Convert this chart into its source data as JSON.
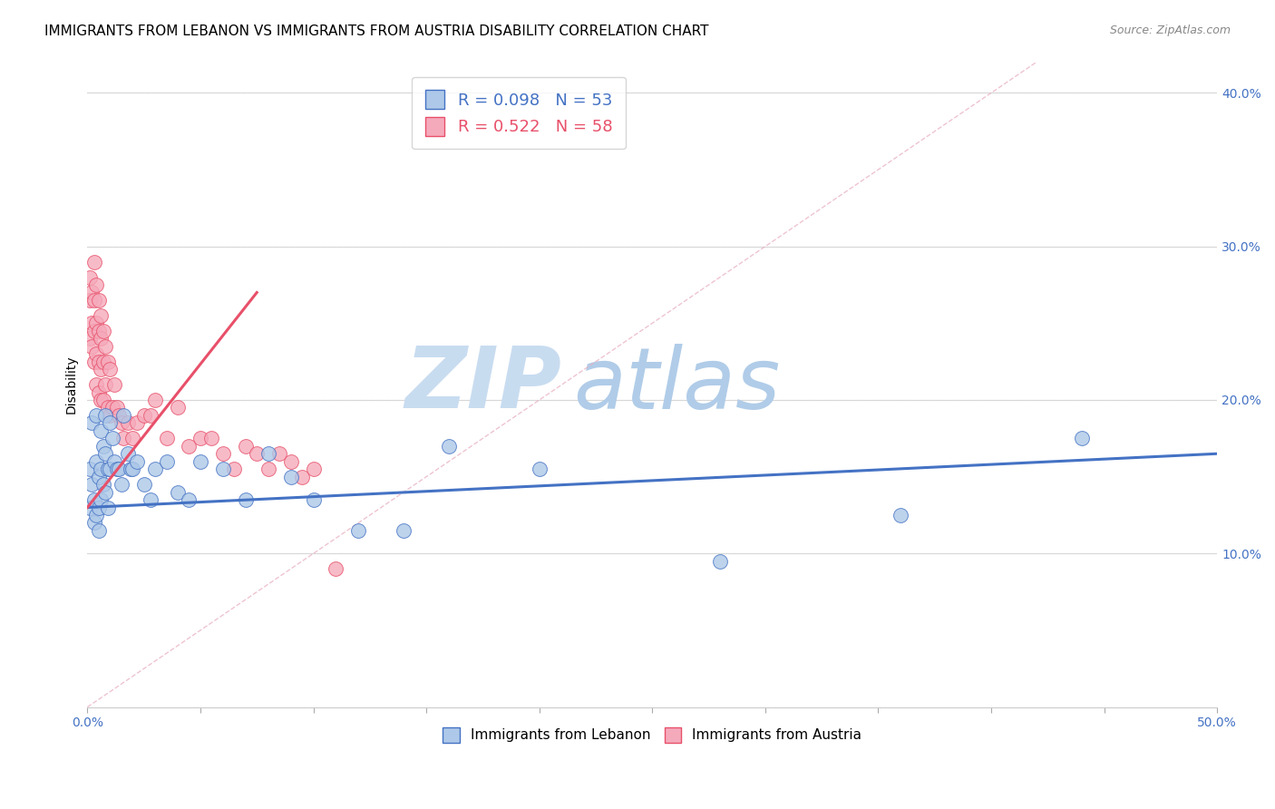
{
  "title": "IMMIGRANTS FROM LEBANON VS IMMIGRANTS FROM AUSTRIA DISABILITY CORRELATION CHART",
  "source": "Source: ZipAtlas.com",
  "xlabel": "",
  "ylabel": "Disability",
  "xlim": [
    0.0,
    0.5
  ],
  "ylim": [
    0.0,
    0.42
  ],
  "x_ticks": [
    0.0,
    0.05,
    0.1,
    0.15,
    0.2,
    0.25,
    0.3,
    0.35,
    0.4,
    0.45,
    0.5
  ],
  "x_tick_labels_show": {
    "0.0": "0.0%",
    "0.5": "50.0%"
  },
  "y_ticks": [
    0.0,
    0.1,
    0.2,
    0.3,
    0.4
  ],
  "y_tick_labels": [
    "",
    "10.0%",
    "20.0%",
    "30.0%",
    "40.0%"
  ],
  "legend_r1": "R = 0.098",
  "legend_n1": "N = 53",
  "legend_r2": "R = 0.522",
  "legend_n2": "N = 58",
  "color_lebanon": "#adc8e8",
  "color_austria": "#f5aabb",
  "line_color_lebanon": "#4472c4",
  "line_color_austria": "#e8506a",
  "diagonal_color": "#e8b0c0",
  "watermark_zip": "ZIP",
  "watermark_atlas": "atlas",
  "watermark_color_zip": "#c8dcf0",
  "watermark_color_atlas": "#b0cce8",
  "background_color": "#ffffff",
  "grid_color": "#d8d8d8",
  "lebanon_x": [
    0.001,
    0.001,
    0.002,
    0.002,
    0.003,
    0.003,
    0.004,
    0.004,
    0.004,
    0.005,
    0.005,
    0.005,
    0.006,
    0.006,
    0.006,
    0.007,
    0.007,
    0.008,
    0.008,
    0.008,
    0.009,
    0.009,
    0.01,
    0.01,
    0.011,
    0.012,
    0.013,
    0.014,
    0.015,
    0.016,
    0.018,
    0.019,
    0.02,
    0.022,
    0.025,
    0.028,
    0.03,
    0.035,
    0.04,
    0.045,
    0.05,
    0.06,
    0.07,
    0.08,
    0.09,
    0.1,
    0.12,
    0.14,
    0.16,
    0.2,
    0.28,
    0.36,
    0.44
  ],
  "lebanon_y": [
    0.13,
    0.155,
    0.185,
    0.145,
    0.135,
    0.12,
    0.19,
    0.16,
    0.125,
    0.15,
    0.13,
    0.115,
    0.18,
    0.155,
    0.135,
    0.17,
    0.145,
    0.19,
    0.165,
    0.14,
    0.155,
    0.13,
    0.185,
    0.155,
    0.175,
    0.16,
    0.155,
    0.155,
    0.145,
    0.19,
    0.165,
    0.155,
    0.155,
    0.16,
    0.145,
    0.135,
    0.155,
    0.16,
    0.14,
    0.135,
    0.16,
    0.155,
    0.135,
    0.165,
    0.15,
    0.135,
    0.115,
    0.115,
    0.17,
    0.155,
    0.095,
    0.125,
    0.175
  ],
  "austria_x": [
    0.001,
    0.001,
    0.001,
    0.002,
    0.002,
    0.002,
    0.003,
    0.003,
    0.003,
    0.003,
    0.004,
    0.004,
    0.004,
    0.004,
    0.005,
    0.005,
    0.005,
    0.005,
    0.006,
    0.006,
    0.006,
    0.006,
    0.007,
    0.007,
    0.007,
    0.008,
    0.008,
    0.009,
    0.009,
    0.01,
    0.01,
    0.011,
    0.012,
    0.013,
    0.014,
    0.015,
    0.016,
    0.018,
    0.02,
    0.022,
    0.025,
    0.028,
    0.03,
    0.035,
    0.04,
    0.045,
    0.05,
    0.055,
    0.06,
    0.065,
    0.07,
    0.075,
    0.08,
    0.085,
    0.09,
    0.095,
    0.1,
    0.11
  ],
  "austria_y": [
    0.28,
    0.265,
    0.24,
    0.27,
    0.25,
    0.235,
    0.29,
    0.265,
    0.245,
    0.225,
    0.275,
    0.25,
    0.23,
    0.21,
    0.265,
    0.245,
    0.225,
    0.205,
    0.255,
    0.24,
    0.22,
    0.2,
    0.245,
    0.225,
    0.2,
    0.235,
    0.21,
    0.225,
    0.195,
    0.22,
    0.19,
    0.195,
    0.21,
    0.195,
    0.19,
    0.185,
    0.175,
    0.185,
    0.175,
    0.185,
    0.19,
    0.19,
    0.2,
    0.175,
    0.195,
    0.17,
    0.175,
    0.175,
    0.165,
    0.155,
    0.17,
    0.165,
    0.155,
    0.165,
    0.16,
    0.15,
    0.155,
    0.09
  ],
  "title_fontsize": 11,
  "axis_label_fontsize": 10,
  "tick_fontsize": 10,
  "legend_fontsize": 13
}
